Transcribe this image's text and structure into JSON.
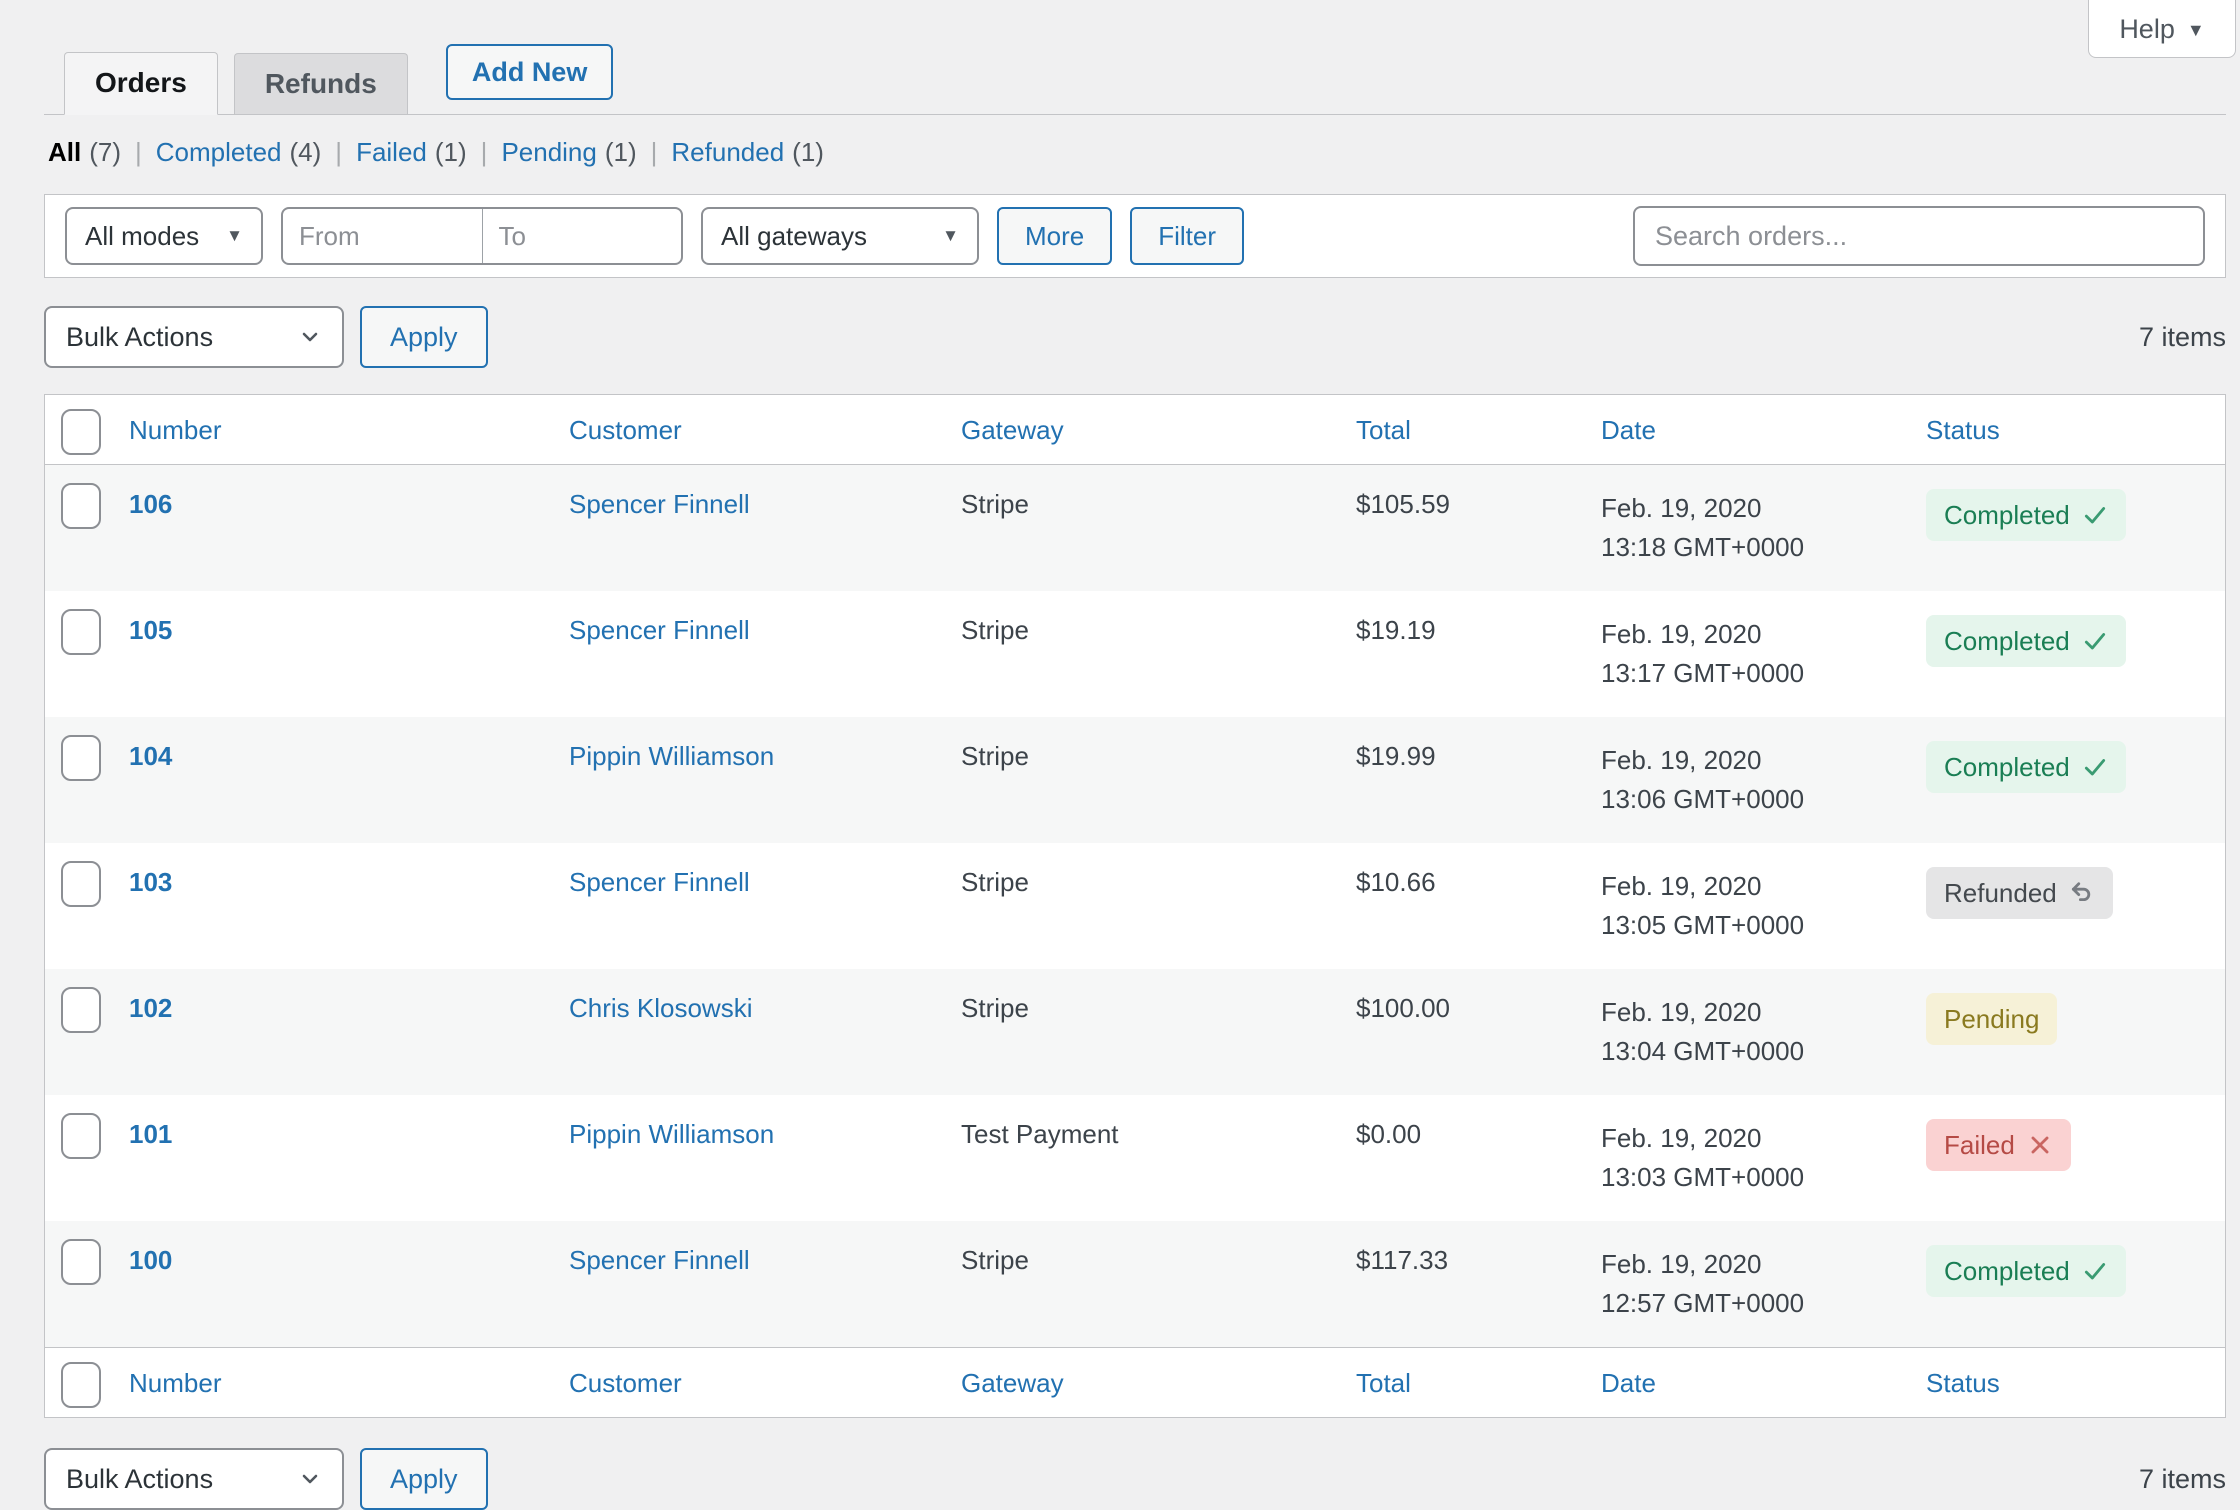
{
  "header": {
    "tabs": [
      {
        "label": "Orders",
        "active": true
      },
      {
        "label": "Refunds",
        "active": false
      }
    ],
    "add_new_label": "Add New",
    "help_label": "Help"
  },
  "status_filters": [
    {
      "label": "All",
      "count": "(7)",
      "active": true
    },
    {
      "label": "Completed",
      "count": "(4)",
      "active": false
    },
    {
      "label": "Failed",
      "count": "(1)",
      "active": false
    },
    {
      "label": "Pending",
      "count": "(1)",
      "active": false
    },
    {
      "label": "Refunded",
      "count": "(1)",
      "active": false
    }
  ],
  "filters": {
    "modes_value": "All modes",
    "from_placeholder": "From",
    "to_placeholder": "To",
    "gateways_value": "All gateways",
    "more_label": "More",
    "filter_label": "Filter",
    "search_placeholder": "Search orders..."
  },
  "bulk": {
    "select_label": "Bulk Actions",
    "apply_label": "Apply",
    "items_label": "7 items"
  },
  "table": {
    "columns": [
      "Number",
      "Customer",
      "Gateway",
      "Total",
      "Date",
      "Status"
    ],
    "rows": [
      {
        "number": "106",
        "customer": "Spencer Finnell",
        "gateway": "Stripe",
        "total": "$105.59",
        "date_line1": "Feb. 19, 2020",
        "date_line2": "13:18 GMT+0000",
        "status": "Completed"
      },
      {
        "number": "105",
        "customer": "Spencer Finnell",
        "gateway": "Stripe",
        "total": "$19.19",
        "date_line1": "Feb. 19, 2020",
        "date_line2": "13:17 GMT+0000",
        "status": "Completed"
      },
      {
        "number": "104",
        "customer": "Pippin Williamson",
        "gateway": "Stripe",
        "total": "$19.99",
        "date_line1": "Feb. 19, 2020",
        "date_line2": "13:06 GMT+0000",
        "status": "Completed"
      },
      {
        "number": "103",
        "customer": "Spencer Finnell",
        "gateway": "Stripe",
        "total": "$10.66",
        "date_line1": "Feb. 19, 2020",
        "date_line2": "13:05 GMT+0000",
        "status": "Refunded"
      },
      {
        "number": "102",
        "customer": "Chris Klosowski",
        "gateway": "Stripe",
        "total": "$100.00",
        "date_line1": "Feb. 19, 2020",
        "date_line2": "13:04 GMT+0000",
        "status": "Pending"
      },
      {
        "number": "101",
        "customer": "Pippin Williamson",
        "gateway": "Test Payment",
        "total": "$0.00",
        "date_line1": "Feb. 19, 2020",
        "date_line2": "13:03 GMT+0000",
        "status": "Failed"
      },
      {
        "number": "100",
        "customer": "Spencer Finnell",
        "gateway": "Stripe",
        "total": "$117.33",
        "date_line1": "Feb. 19, 2020",
        "date_line2": "12:57 GMT+0000",
        "status": "Completed"
      }
    ]
  },
  "statuses": {
    "Completed": {
      "bg": "#e5f5ec",
      "color": "#1a7e54",
      "icon": "check-icon",
      "icon_color": "#3a9b72"
    },
    "Refunded": {
      "bg": "#e5e5e6",
      "color": "#44494e",
      "icon": "undo-icon",
      "icon_color": "#787c82"
    },
    "Pending": {
      "bg": "#f6f1d7",
      "color": "#8a7a20",
      "icon": "",
      "icon_color": ""
    },
    "Failed": {
      "bg": "#fad2d2",
      "color": "#b54a45",
      "icon": "x-icon",
      "icon_color": "#c96561"
    }
  },
  "colors": {
    "accent": "#2271b1",
    "page_bg": "#f0f0f1",
    "border": "#c3c4c7",
    "row_alt_bg": "#f6f7f7"
  }
}
